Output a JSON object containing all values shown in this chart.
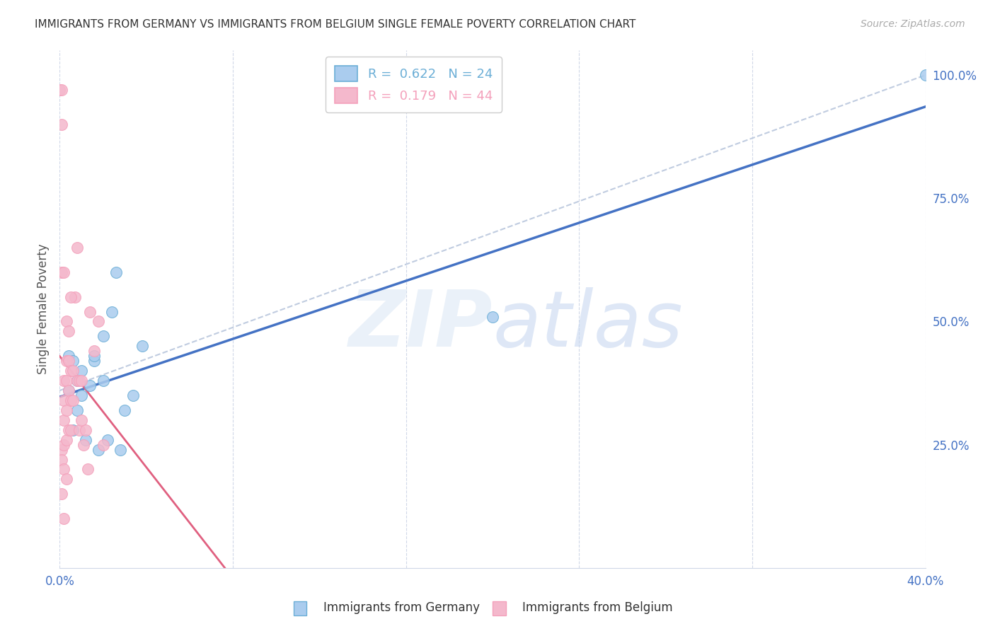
{
  "title": "IMMIGRANTS FROM GERMANY VS IMMIGRANTS FROM BELGIUM SINGLE FEMALE POVERTY CORRELATION CHART",
  "source": "Source: ZipAtlas.com",
  "ylabel": "Single Female Poverty",
  "ylabel_right_labels": [
    "100.0%",
    "75.0%",
    "50.0%",
    "25.0%"
  ],
  "ylabel_right_values": [
    1.0,
    0.75,
    0.5,
    0.25
  ],
  "legend_1_label": "R =  0.622   N = 24",
  "legend_2_label": "R =  0.179   N = 44",
  "legend_color_1": "#6baed6",
  "legend_color_2": "#f4a0bb",
  "r1": 0.622,
  "n1": 24,
  "r2": 0.179,
  "n2": 44,
  "background_color": "#ffffff",
  "grid_color": "#d0d8e8",
  "scatter_color_germany": "#aaccee",
  "scatter_color_belgium": "#f4b8cc",
  "line_color_germany": "#4472c4",
  "line_color_belgium": "#e06080",
  "dashed_line_color": "#c0cce0",
  "x_germany": [
    0.004,
    0.006,
    0.01,
    0.016,
    0.02,
    0.004,
    0.008,
    0.01,
    0.014,
    0.016,
    0.02,
    0.024,
    0.026,
    0.03,
    0.034,
    0.038,
    0.006,
    0.008,
    0.012,
    0.018,
    0.022,
    0.028,
    0.2,
    0.4
  ],
  "y_germany": [
    0.43,
    0.42,
    0.4,
    0.42,
    0.47,
    0.36,
    0.38,
    0.35,
    0.37,
    0.43,
    0.38,
    0.52,
    0.6,
    0.32,
    0.35,
    0.45,
    0.28,
    0.32,
    0.26,
    0.24,
    0.26,
    0.24,
    0.51,
    1.0
  ],
  "x_belgium": [
    0.0,
    0.001,
    0.001,
    0.001,
    0.001,
    0.002,
    0.002,
    0.002,
    0.002,
    0.003,
    0.003,
    0.003,
    0.003,
    0.004,
    0.004,
    0.004,
    0.005,
    0.005,
    0.005,
    0.006,
    0.006,
    0.007,
    0.008,
    0.008,
    0.009,
    0.009,
    0.01,
    0.01,
    0.011,
    0.012,
    0.013,
    0.014,
    0.016,
    0.018,
    0.02,
    0.001,
    0.002,
    0.003,
    0.004,
    0.005,
    0.001,
    0.002,
    0.003,
    0.002
  ],
  "y_belgium": [
    0.97,
    0.97,
    0.9,
    0.24,
    0.22,
    0.38,
    0.34,
    0.3,
    0.25,
    0.42,
    0.38,
    0.32,
    0.26,
    0.42,
    0.36,
    0.28,
    0.4,
    0.34,
    0.28,
    0.4,
    0.34,
    0.55,
    0.65,
    0.38,
    0.38,
    0.28,
    0.38,
    0.3,
    0.25,
    0.28,
    0.2,
    0.52,
    0.44,
    0.5,
    0.25,
    0.6,
    0.6,
    0.5,
    0.48,
    0.55,
    0.15,
    0.2,
    0.18,
    0.1
  ],
  "xlim": [
    0.0,
    0.4
  ],
  "ylim": [
    0.0,
    1.05
  ],
  "xtick_positions": [
    0.0,
    0.08,
    0.16,
    0.24,
    0.32,
    0.4
  ],
  "xtick_labels": [
    "0.0%",
    "",
    "",
    "",
    "",
    "40.0%"
  ],
  "figsize": [
    14.06,
    8.92
  ],
  "dpi": 100
}
